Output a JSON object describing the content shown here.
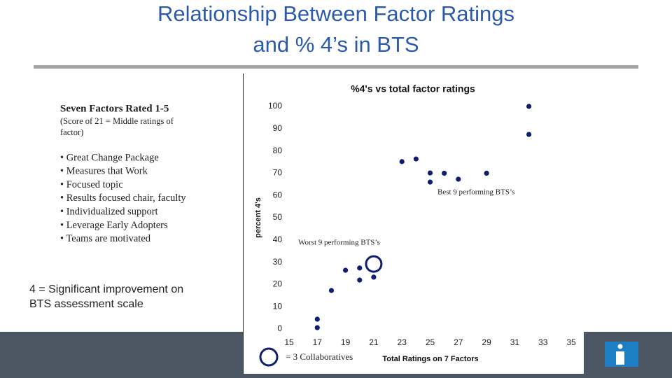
{
  "header": {
    "title": [
      "Relationship Between Factor Ratings",
      "and % 4’s in BTS"
    ]
  },
  "left_panel": {
    "heading": "Seven Factors Rated 1-5",
    "note": [
      "(Score of 21 = Middle ratings of",
      "factor)"
    ],
    "bullets": [
      "• Great Change Package",
      "• Measures that Work",
      "• Focused topic",
      "• Results focused chair,  faculty",
      "• Individualized support",
      "• Leverage Early Adopters",
      "• Teams are motivated"
    ],
    "footnote": [
      "4 = Significant improvement on",
      "BTS assessment scale"
    ]
  },
  "chart_data": {
    "type": "scatter",
    "title": "%4's vs total factor ratings",
    "x_label": "Total Ratings on 7 Factors",
    "y_label": "percent 4's",
    "xlim": [
      15,
      35
    ],
    "xticks": [
      15,
      17,
      19,
      21,
      23,
      25,
      27,
      29,
      31,
      33,
      35
    ],
    "ylim": [
      0,
      100
    ],
    "yticks": [
      0,
      10,
      20,
      30,
      40,
      50,
      60,
      70,
      80,
      90,
      100
    ],
    "grid": false,
    "series": [
      {
        "color": "#0d1f6e",
        "x": [
          17,
          17,
          18,
          19,
          20,
          20,
          21,
          23,
          24,
          25,
          25,
          26,
          27,
          29,
          32,
          32
        ],
        "values": [
          4.4,
          0.6,
          17.3,
          26.4,
          27.4,
          22,
          23.3,
          75.2,
          76.4,
          70.1,
          66,
          70,
          67.3,
          70,
          100,
          87.4
        ]
      },
      {
        "name": "= 3 Collaboratives",
        "color": "#0d1f6e",
        "x": [
          21
        ],
        "values": [
          29.2
        ]
      }
    ],
    "annotations": [
      "Best 9  performing BTS’s",
      "Worst 9 performing BTS’s"
    ]
  }
}
